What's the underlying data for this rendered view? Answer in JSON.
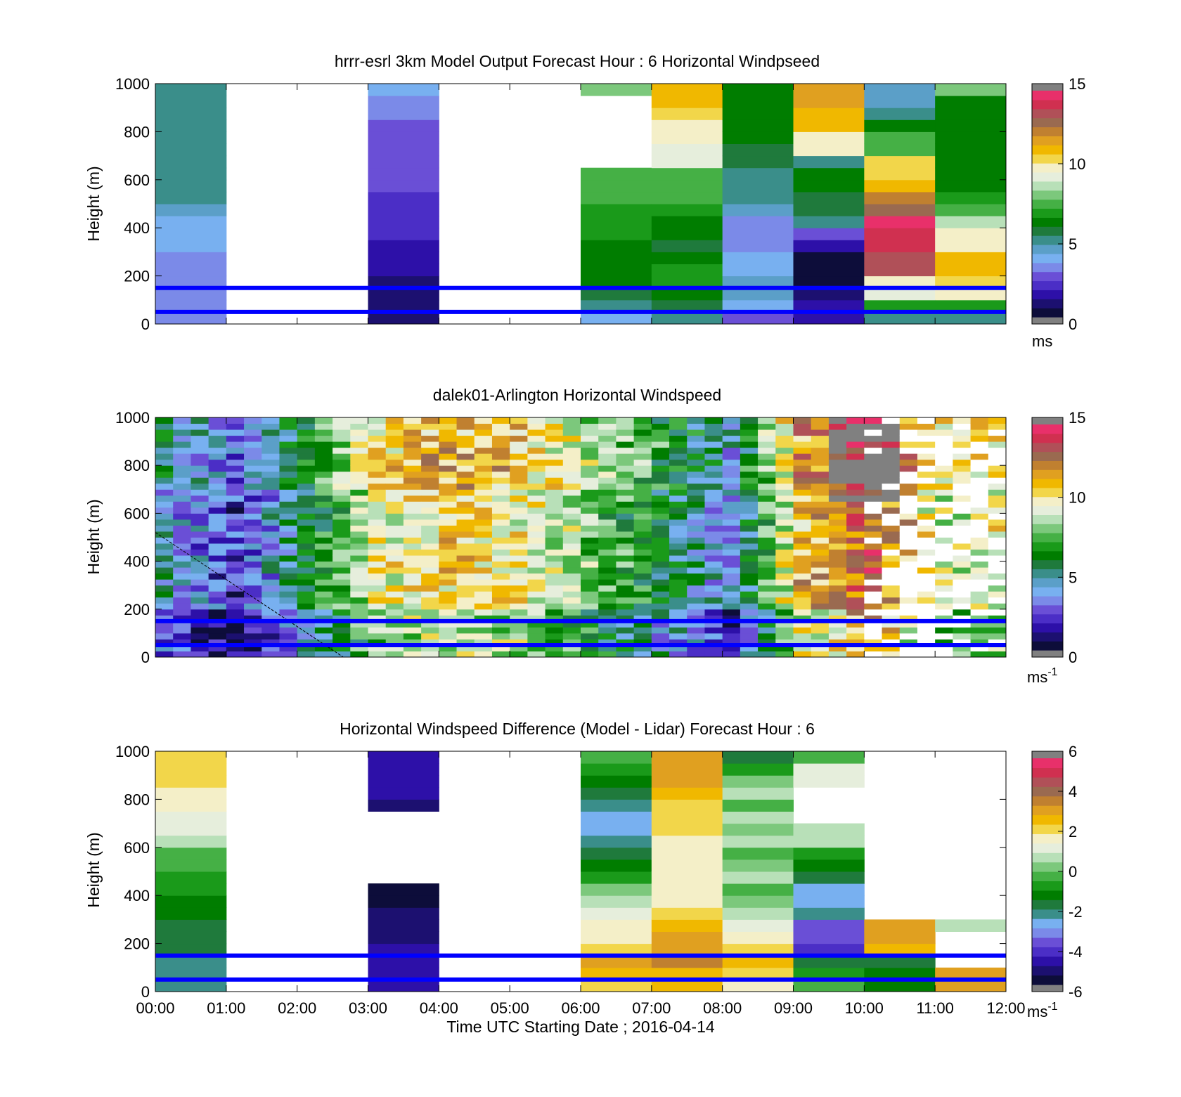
{
  "colors": {
    "wind_scale": [
      "#0d0d3a",
      "#1c1070",
      "#2d10a8",
      "#4b2ec6",
      "#6a4fd6",
      "#7b8ae8",
      "#78b0f0",
      "#5b9fc8",
      "#3a8e8a",
      "#1f7a3c",
      "#007d00",
      "#1a9a1a",
      "#45b045",
      "#7cc87c",
      "#b8e0b8",
      "#e6eedc",
      "#f4efc8",
      "#f2d64a",
      "#f0b800",
      "#e0a020",
      "#c08030",
      "#9a6a50",
      "#b05058",
      "#d03050",
      "#e8306a"
    ],
    "diff_scale": [
      "#0d0d3a",
      "#1c1070",
      "#2d10a8",
      "#4b2ec6",
      "#6a4fd6",
      "#7b8ae8",
      "#78b0f0",
      "#3a8e8a",
      "#1f7a3c",
      "#007d00",
      "#1a9a1a",
      "#45b045",
      "#7cc87c",
      "#b8e0b8",
      "#e6eedc",
      "#f4efc8",
      "#f2d64a",
      "#f0b800",
      "#e0a020",
      "#c08030",
      "#9a6a50",
      "#b05058",
      "#d03050",
      "#e8306a"
    ],
    "missing": "#808080",
    "reference_line": "#0000ff"
  },
  "chart_data": [
    {
      "type": "heatmap",
      "title": "hrrr-esrl 3km Model Output   Forecast Hour : 6 Horizontal Windpseed",
      "xlabel": "",
      "ylabel": "Height (m)",
      "ylim": [
        0,
        1000
      ],
      "yticks": [
        "0",
        "200",
        "400",
        "600",
        "800",
        "1000"
      ],
      "xticks": [
        "00:00",
        "01:00",
        "02:00",
        "03:00",
        "04:00",
        "05:00",
        "06:00",
        "07:00",
        "08:00",
        "09:00",
        "10:00",
        "11:00",
        "12:00"
      ],
      "show_xtick_labels": false,
      "x_hours": [
        0,
        1,
        2,
        3,
        4,
        5,
        6,
        7,
        8,
        9,
        10,
        11
      ],
      "heights_m": [
        25,
        75,
        125,
        175,
        225,
        275,
        325,
        375,
        425,
        475,
        525,
        575,
        625,
        675,
        725,
        775,
        825,
        875,
        925,
        975
      ],
      "values": [
        [
          3,
          3,
          3,
          3,
          3.3,
          3.5,
          3.8,
          4,
          4,
          4.2,
          4.8,
          4.8,
          4.8,
          4.8,
          4.8,
          4.8,
          4.8,
          4.8,
          4.8,
          4.8
        ],
        [
          null,
          null,
          null,
          null,
          null,
          null,
          null,
          null,
          null,
          null,
          null,
          null,
          null,
          null,
          null,
          null,
          null,
          null,
          null,
          null
        ],
        [
          null,
          null,
          null,
          null,
          null,
          null,
          null,
          null,
          null,
          null,
          null,
          null,
          null,
          null,
          null,
          null,
          null,
          null,
          null,
          null
        ],
        [
          0.6,
          0.8,
          1,
          1.1,
          1.3,
          1.5,
          1.7,
          1.9,
          2.1,
          2.2,
          2.3,
          2.4,
          2.5,
          2.5,
          2.6,
          2.7,
          2.8,
          3.2,
          3.3,
          3.6
        ],
        [
          null,
          null,
          null,
          null,
          null,
          null,
          null,
          null,
          null,
          null,
          null,
          null,
          null,
          null,
          null,
          null,
          null,
          null,
          null,
          null
        ],
        [
          null,
          null,
          null,
          null,
          null,
          null,
          null,
          null,
          null,
          null,
          null,
          null,
          null,
          null,
          null,
          null,
          null,
          null,
          null,
          null
        ],
        [
          3.8,
          5,
          5.5,
          6,
          6,
          6.3,
          6.5,
          6.8,
          7,
          7,
          7.5,
          7.5,
          7.5,
          null,
          null,
          null,
          null,
          null,
          null,
          7.8
        ],
        [
          5,
          5.5,
          6.5,
          6.8,
          7,
          6,
          5.8,
          6.2,
          6.5,
          6.8,
          7.2,
          7.3,
          7.5,
          9,
          9,
          10,
          10,
          10.5,
          10.8,
          10.8
        ],
        [
          2.5,
          4,
          4.5,
          4.5,
          4,
          3.8,
          3.5,
          3.2,
          3.3,
          4.2,
          5,
          5,
          5,
          5.5,
          5.5,
          6,
          6,
          6.5,
          6.5,
          6.5
        ],
        [
          1.5,
          1.5,
          1,
          0.5,
          0.5,
          0.5,
          1.5,
          2.5,
          5,
          5.5,
          5.5,
          6.5,
          6.5,
          5,
          10,
          10,
          11,
          11,
          11.5,
          11.5
        ],
        [
          5,
          7,
          9,
          10,
          13.5,
          13.5,
          14,
          14,
          14.5,
          13,
          12,
          11,
          10.5,
          10.5,
          7.5,
          7.5,
          6,
          5,
          4.5,
          4.2
        ],
        [
          5,
          7,
          10,
          10.5,
          11,
          11,
          10,
          10,
          8.8,
          7.5,
          7,
          6,
          6,
          6,
          6,
          6,
          6,
          6.5,
          6.5,
          8
        ]
      ],
      "vmin": 0,
      "vmax": 15,
      "colorbar_ticks": [
        "0",
        "5",
        "10",
        "15"
      ],
      "colorbar_unit": "ms",
      "reference_lines_m": [
        50,
        150
      ]
    },
    {
      "type": "heatmap",
      "title": "dalek01-Arlington  Horizontal Windspeed",
      "xlabel": "",
      "ylabel": "Height (m)",
      "ylim": [
        0,
        1000
      ],
      "yticks": [
        "0",
        "200",
        "400",
        "600",
        "800",
        "1000"
      ],
      "xticks": [
        "00:00",
        "01:00",
        "02:00",
        "03:00",
        "04:00",
        "05:00",
        "06:00",
        "07:00",
        "08:00",
        "09:00",
        "10:00",
        "11:00",
        "12:00"
      ],
      "show_xtick_labels": false,
      "time_columns": 48,
      "profile_keys_hours": [
        0,
        1,
        2,
        3,
        4,
        5,
        6,
        7,
        8,
        9,
        10,
        11,
        12
      ],
      "profile_keys_speed_ms": [
        4.5,
        2.2,
        5.5,
        9.5,
        10.5,
        10,
        8,
        6,
        3.5,
        11,
        13,
        9,
        10
      ],
      "heights_m": [
        0,
        1000
      ],
      "vmin": 0,
      "vmax": 15,
      "colorbar_ticks": [
        "0",
        "5",
        "10",
        "15"
      ],
      "colorbar_unit": "ms",
      "colorbar_unit_sup": "-1",
      "reference_lines_m": [
        50,
        150
      ]
    },
    {
      "type": "heatmap",
      "title": "Horizontal Windspeed Difference (Model - Lidar) Forecast Hour : 6",
      "xlabel": "Time UTC  Starting Date ; 2016-04-14",
      "ylabel": "Height (m)",
      "ylim": [
        0,
        1000
      ],
      "yticks": [
        "0",
        "200",
        "400",
        "600",
        "800",
        "1000"
      ],
      "xticks": [
        "00:00",
        "01:00",
        "02:00",
        "03:00",
        "04:00",
        "05:00",
        "06:00",
        "07:00",
        "08:00",
        "09:00",
        "10:00",
        "11:00",
        "12:00"
      ],
      "show_xtick_labels": true,
      "x_hours": [
        0,
        1,
        2,
        3,
        4,
        5,
        6,
        7,
        8,
        9,
        10,
        11
      ],
      "heights_m": [
        25,
        75,
        125,
        175,
        225,
        275,
        325,
        375,
        425,
        475,
        525,
        575,
        625,
        675,
        725,
        775,
        825,
        875,
        925,
        975
      ],
      "values": [
        [
          -2.5,
          -2.5,
          -2.5,
          -2,
          -2,
          -2,
          -1.5,
          -1.5,
          -1,
          -1,
          -0.5,
          -0.3,
          0.5,
          1,
          1,
          1.5,
          1.5,
          2,
          2,
          2
        ],
        [
          null,
          null,
          null,
          null,
          null,
          null,
          null,
          null,
          null,
          null,
          null,
          null,
          null,
          null,
          null,
          null,
          null,
          null,
          null,
          null
        ],
        [
          null,
          null,
          null,
          null,
          null,
          null,
          null,
          null,
          null,
          null,
          null,
          null,
          null,
          null,
          null,
          null,
          null,
          null,
          null,
          null
        ],
        [
          -5,
          -5,
          -5,
          -5,
          -5.5,
          -5.5,
          -5.5,
          -6,
          -6,
          null,
          null,
          null,
          null,
          null,
          null,
          -5.5,
          -5,
          -5,
          -5,
          -5
        ],
        [
          null,
          null,
          null,
          null,
          null,
          null,
          null,
          null,
          null,
          null,
          null,
          null,
          null,
          null,
          null,
          null,
          null,
          null,
          null,
          null
        ],
        [
          null,
          null,
          null,
          null,
          null,
          null,
          null,
          null,
          null,
          null,
          null,
          null,
          null,
          null,
          null,
          null,
          null,
          null,
          null,
          null
        ],
        [
          2,
          2.5,
          3,
          2,
          1.5,
          1.5,
          1,
          0.5,
          0,
          -1,
          -1.5,
          -2,
          -2.5,
          -3,
          -3,
          -2.5,
          -2,
          -1.5,
          -1,
          -0.5
        ],
        [
          2.5,
          2.5,
          3.5,
          3,
          3,
          2.5,
          2,
          1.5,
          1.5,
          1.5,
          1.5,
          1.5,
          1.5,
          2,
          2,
          2,
          2.5,
          3,
          3,
          3
        ],
        [
          1.5,
          2,
          2.5,
          2,
          1.5,
          1,
          0.5,
          0,
          -0.5,
          0.5,
          0,
          -0.5,
          0.5,
          0,
          0.5,
          -0.5,
          0.5,
          0,
          -1,
          -2
        ],
        [
          -0.5,
          -1,
          -2,
          -4.5,
          -4,
          -4,
          -2.5,
          -3,
          -3,
          -2,
          -1.5,
          -1,
          0.5,
          0.5,
          null,
          null,
          null,
          1,
          1,
          -0.5
        ],
        [
          -1.5,
          -1.5,
          -2,
          2.5,
          3,
          3,
          null,
          null,
          null,
          null,
          null,
          null,
          null,
          null,
          null,
          null,
          null,
          null,
          null,
          null
        ],
        [
          3,
          3,
          null,
          null,
          null,
          0.5,
          null,
          null,
          null,
          null,
          null,
          null,
          null,
          null,
          null,
          null,
          null,
          null,
          null,
          null
        ]
      ],
      "vmin": -6,
      "vmax": 6,
      "colorbar_ticks": [
        "-6",
        "-4",
        "-2",
        "0",
        "2",
        "4",
        "6"
      ],
      "colorbar_unit": "ms",
      "colorbar_unit_sup": "-1",
      "reference_lines_m": [
        50,
        150
      ]
    }
  ]
}
